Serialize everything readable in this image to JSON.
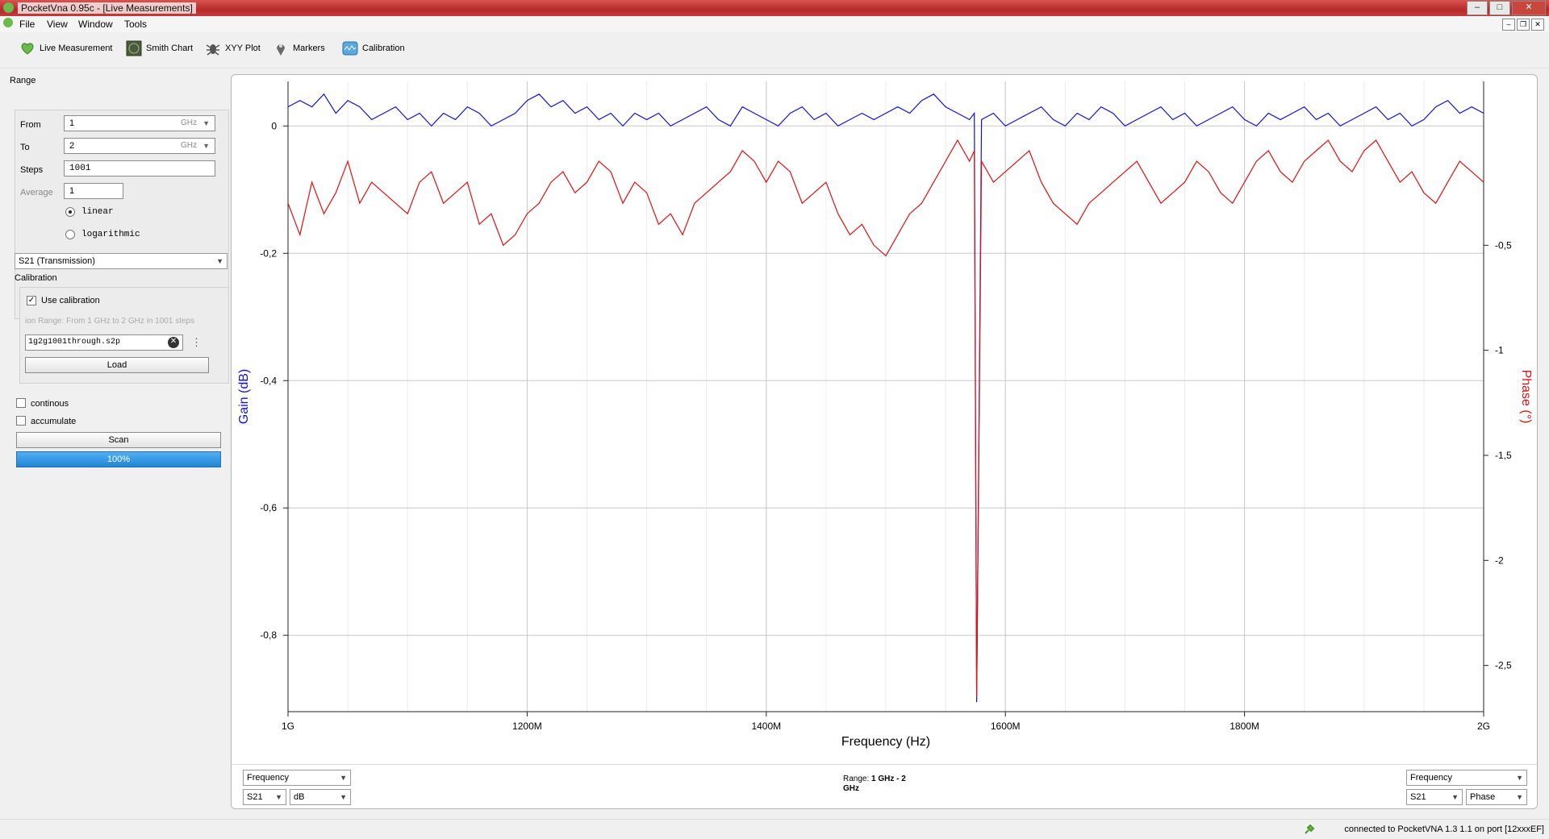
{
  "window": {
    "title": "PocketVna 0.95c - [Live Measurements]"
  },
  "menu": {
    "items": [
      "File",
      "View",
      "Window",
      "Tools"
    ]
  },
  "toolbar": {
    "items": [
      {
        "label": "Live Measurement",
        "icon": "heart-leaf-icon"
      },
      {
        "label": "Smith Chart",
        "icon": "smith-chart-icon"
      },
      {
        "label": "XYY Plot",
        "icon": "bug-icon"
      },
      {
        "label": "Markers",
        "icon": "map-pin-icon"
      },
      {
        "label": "Calibration",
        "icon": "calibration-icon"
      }
    ]
  },
  "range": {
    "section_label": "Range",
    "from_label": "From",
    "from_value": "1",
    "from_unit": "GHz",
    "to_label": "To",
    "to_value": "2",
    "to_unit": "GHz",
    "steps_label": "Steps",
    "steps_value": "1001",
    "average_label": "Average",
    "average_value": "1",
    "linear_label": "linear",
    "logarithmic_label": "logarithmic",
    "scale_selected": "linear"
  },
  "parameter": {
    "selected": "S21 (Transmission)"
  },
  "calibration": {
    "section_label": "Calibration",
    "use_label": "Use calibration",
    "use_checked": true,
    "info": "ion Range: From 1 GHz to 2 GHz in 1001 steps",
    "file": "1g2g1001through.s2p",
    "load_label": "Load"
  },
  "scan": {
    "continous_label": "continous",
    "accumulate_label": "accumulate",
    "scan_label": "Scan",
    "progress_text": "100%",
    "progress": 1.0
  },
  "chart_data": {
    "type": "line",
    "xlabel": "Frequency (Hz)",
    "ylabel_left": "Gain (dB)",
    "ylabel_right": "Phase (°)",
    "x_ticks": [
      "1G",
      "1200M",
      "1400M",
      "1600M",
      "1800M",
      "2G"
    ],
    "xlim": [
      1000,
      2000
    ],
    "x_unit": "MHz",
    "y_left_ticks": [
      "0",
      "-0,2",
      "-0,4",
      "-0,6",
      "-0,8"
    ],
    "y_left_lim": [
      -0.92,
      0.07
    ],
    "y_right_ticks": [
      "-0,5",
      "-1",
      "-1,5",
      "-2",
      "-2,5"
    ],
    "y_right_lim": [
      -2.72,
      0.28
    ],
    "grid": true,
    "colors": {
      "gain": "#1010e0",
      "phase": "#e01010"
    },
    "series": [
      {
        "axis": "left",
        "x": [
          1000,
          1010,
          1020,
          1030,
          1040,
          1050,
          1060,
          1070,
          1080,
          1090,
          1100,
          1110,
          1120,
          1130,
          1140,
          1150,
          1160,
          1170,
          1180,
          1190,
          1200,
          1210,
          1220,
          1230,
          1240,
          1250,
          1260,
          1270,
          1280,
          1290,
          1300,
          1310,
          1320,
          1330,
          1340,
          1350,
          1360,
          1370,
          1380,
          1390,
          1400,
          1410,
          1420,
          1430,
          1440,
          1450,
          1460,
          1470,
          1480,
          1490,
          1500,
          1510,
          1520,
          1530,
          1540,
          1550,
          1560,
          1570,
          1574,
          1576,
          1580,
          1590,
          1600,
          1610,
          1620,
          1630,
          1640,
          1650,
          1660,
          1670,
          1680,
          1690,
          1700,
          1710,
          1720,
          1730,
          1740,
          1750,
          1760,
          1770,
          1780,
          1790,
          1800,
          1810,
          1820,
          1830,
          1840,
          1850,
          1860,
          1870,
          1880,
          1890,
          1900,
          1910,
          1920,
          1930,
          1940,
          1950,
          1960,
          1970,
          1980,
          1990,
          2000
        ],
        "y": [
          0.03,
          0.04,
          0.03,
          0.05,
          0.02,
          0.04,
          0.03,
          0.01,
          0.02,
          0.03,
          0.01,
          0.02,
          0.0,
          0.02,
          0.01,
          0.03,
          0.02,
          0.0,
          0.01,
          0.02,
          0.04,
          0.05,
          0.03,
          0.04,
          0.02,
          0.03,
          0.01,
          0.02,
          0.0,
          0.02,
          0.01,
          0.02,
          0.0,
          0.01,
          0.02,
          0.03,
          0.01,
          0.0,
          0.03,
          0.02,
          0.01,
          0.0,
          0.02,
          0.03,
          0.01,
          0.02,
          0.0,
          0.01,
          0.02,
          0.01,
          0.02,
          0.03,
          0.02,
          0.04,
          0.05,
          0.03,
          0.02,
          0.01,
          0.02,
          -0.905,
          0.01,
          0.02,
          0.0,
          0.01,
          0.02,
          0.03,
          0.01,
          0.0,
          0.02,
          0.01,
          0.03,
          0.02,
          0.0,
          0.01,
          0.02,
          0.03,
          0.01,
          0.02,
          0.0,
          0.01,
          0.02,
          0.03,
          0.01,
          0.0,
          0.02,
          0.01,
          0.02,
          0.03,
          0.01,
          0.02,
          0.0,
          0.01,
          0.02,
          0.03,
          0.01,
          0.02,
          0.0,
          0.01,
          0.03,
          0.04,
          0.02,
          0.03,
          0.02
        ]
      },
      {
        "axis": "right",
        "x": [
          1000,
          1010,
          1020,
          1030,
          1040,
          1050,
          1060,
          1070,
          1080,
          1090,
          1100,
          1110,
          1120,
          1130,
          1140,
          1150,
          1160,
          1170,
          1180,
          1190,
          1200,
          1210,
          1220,
          1230,
          1240,
          1250,
          1260,
          1270,
          1280,
          1290,
          1300,
          1310,
          1320,
          1330,
          1340,
          1350,
          1360,
          1370,
          1380,
          1390,
          1400,
          1410,
          1420,
          1430,
          1440,
          1450,
          1460,
          1470,
          1480,
          1490,
          1500,
          1510,
          1520,
          1530,
          1540,
          1550,
          1560,
          1570,
          1574,
          1576,
          1580,
          1590,
          1600,
          1610,
          1620,
          1630,
          1640,
          1650,
          1660,
          1670,
          1680,
          1690,
          1700,
          1710,
          1720,
          1730,
          1740,
          1750,
          1760,
          1770,
          1780,
          1790,
          1800,
          1810,
          1820,
          1830,
          1840,
          1850,
          1860,
          1870,
          1880,
          1890,
          1900,
          1910,
          1920,
          1930,
          1940,
          1950,
          1960,
          1970,
          1980,
          1990,
          2000
        ],
        "y": [
          -0.3,
          -0.45,
          -0.2,
          -0.35,
          -0.25,
          -0.1,
          -0.3,
          -0.2,
          -0.25,
          -0.3,
          -0.35,
          -0.2,
          -0.15,
          -0.3,
          -0.25,
          -0.2,
          -0.4,
          -0.35,
          -0.5,
          -0.45,
          -0.35,
          -0.3,
          -0.2,
          -0.15,
          -0.25,
          -0.2,
          -0.1,
          -0.15,
          -0.3,
          -0.2,
          -0.25,
          -0.4,
          -0.35,
          -0.45,
          -0.3,
          -0.25,
          -0.2,
          -0.15,
          -0.05,
          -0.1,
          -0.2,
          -0.1,
          -0.15,
          -0.3,
          -0.25,
          -0.2,
          -0.35,
          -0.45,
          -0.4,
          -0.5,
          -0.55,
          -0.45,
          -0.35,
          -0.3,
          -0.2,
          -0.1,
          0.0,
          -0.1,
          -0.05,
          -2.65,
          -0.1,
          -0.2,
          -0.15,
          -0.1,
          -0.05,
          -0.2,
          -0.3,
          -0.35,
          -0.4,
          -0.3,
          -0.25,
          -0.2,
          -0.15,
          -0.1,
          -0.2,
          -0.3,
          -0.25,
          -0.2,
          -0.1,
          -0.15,
          -0.25,
          -0.3,
          -0.2,
          -0.1,
          -0.05,
          -0.15,
          -0.2,
          -0.1,
          -0.05,
          0.0,
          -0.1,
          -0.15,
          -0.05,
          0.0,
          -0.1,
          -0.2,
          -0.15,
          -0.25,
          -0.3,
          -0.2,
          -0.1,
          -0.15,
          -0.2
        ]
      }
    ]
  },
  "bottom": {
    "left_axis_select": "Frequency",
    "left_param_select": "S21",
    "left_unit_select": "dB",
    "range_label": "Range:",
    "range_value_line1": "1 GHz - 2",
    "range_value_line2": "GHz",
    "right_axis_select": "Frequency",
    "right_param_select": "S21",
    "right_unit_select": "Phase"
  },
  "status": {
    "text": "connected to PocketVNA 1.3 1.1 on port [12xxxEF]"
  }
}
